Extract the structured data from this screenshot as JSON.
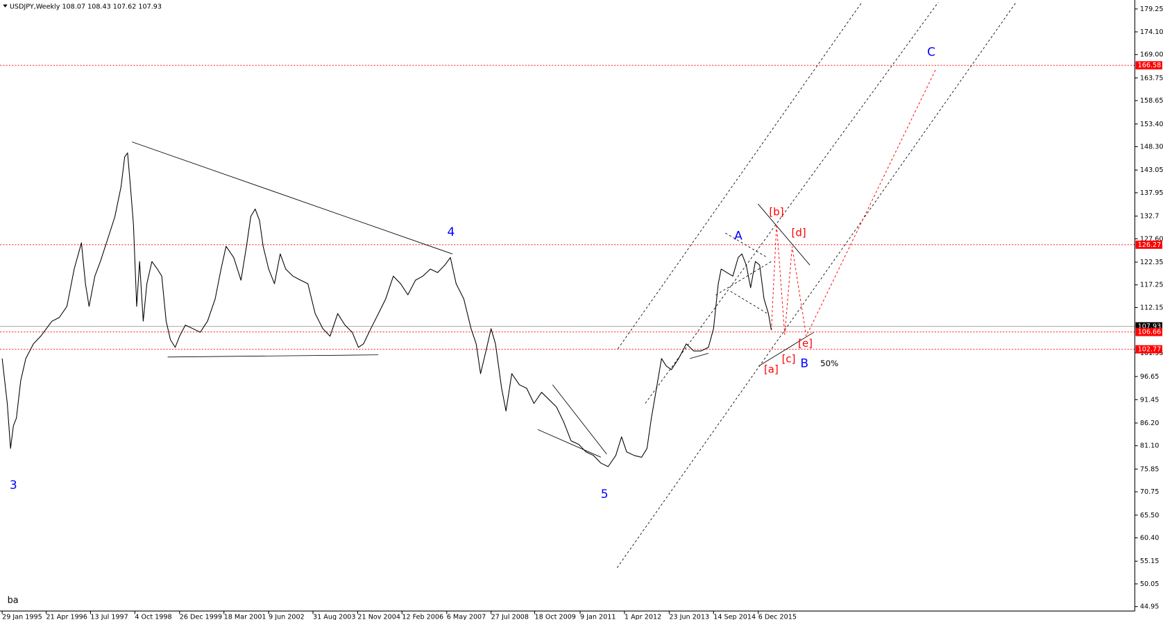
{
  "chart_data": {
    "type": "line",
    "title": "USDJPY,Weekly  108.07 108.43 107.62 107.93",
    "corner_text": "ba",
    "xlim": [
      1995.02,
      2026.24
    ],
    "ylim": [
      43.95,
      181.26
    ],
    "xticks": [
      {
        "value": 1995.08,
        "label": "29 Jan 1995"
      },
      {
        "value": 1996.29,
        "label": "21 Apr 1996"
      },
      {
        "value": 1997.51,
        "label": "13 Jul 1997"
      },
      {
        "value": 1998.73,
        "label": "4 Oct 1998"
      },
      {
        "value": 1999.96,
        "label": "26 Dec 1999"
      },
      {
        "value": 2001.18,
        "label": "18 Mar 2001"
      },
      {
        "value": 2002.41,
        "label": "9 Jun 2002"
      },
      {
        "value": 2003.63,
        "label": "31 Aug 2003"
      },
      {
        "value": 2004.86,
        "label": "21 Nov 2004"
      },
      {
        "value": 2006.08,
        "label": "12 Feb 2006"
      },
      {
        "value": 2007.31,
        "label": "6 May 2007"
      },
      {
        "value": 2008.53,
        "label": "27 Jul 2008"
      },
      {
        "value": 2009.73,
        "label": "18 Oct 2009"
      },
      {
        "value": 2010.98,
        "label": "9 Jan 2011"
      },
      {
        "value": 2012.2,
        "label": "1 Apr 2012"
      },
      {
        "value": 2013.43,
        "label": "23 Jun 2013"
      },
      {
        "value": 2014.65,
        "label": "14 Sep 2014"
      },
      {
        "value": 2015.88,
        "label": "6 Dec 2015"
      }
    ],
    "yticks": [
      179.25,
      {
        "value": 174.1,
        "label": "174.10"
      },
      {
        "value": 169,
        "label": "169.00"
      },
      163.75,
      158.65,
      {
        "value": 153.4,
        "label": "153.40"
      },
      {
        "value": 148.3,
        "label": "148.30"
      },
      143.05,
      137.95,
      132.7,
      {
        "value": 127.6,
        "label": "127.60"
      },
      122.35,
      117.25,
      112.15,
      101.95,
      96.65,
      91.45,
      {
        "value": 86.2,
        "label": "86.20"
      },
      {
        "value": 81.1,
        "label": "81.10"
      },
      75.85,
      70.75,
      {
        "value": 65.5,
        "label": "65.50"
      },
      {
        "value": 60.4,
        "label": "60.40"
      },
      55.15,
      50.05,
      44.95
    ],
    "levels": [
      {
        "value": 166.58,
        "color": "#ff0000"
      },
      {
        "value": 126.27,
        "color": "#ff0000"
      },
      {
        "value": 107.93,
        "color": "#000000"
      },
      {
        "value": 106.66,
        "color": "#ff0000"
      },
      {
        "value": 102.77,
        "color": "#ff0000"
      }
    ],
    "annotations": [
      "3",
      "4",
      "5",
      "A",
      "B",
      "C",
      "[a]",
      "[b]",
      "[c]",
      "[d]",
      "[e]",
      "50%"
    ],
    "series": [
      {
        "name": "USDJPY",
        "color": "#000000",
        "x": [
          1995.08,
          1995.22,
          1995.31,
          1995.39,
          1995.47,
          1995.59,
          1995.73,
          1995.94,
          1996.14,
          1996.45,
          1996.65,
          1996.86,
          1997.06,
          1997.26,
          1997.37,
          1997.47,
          1997.63,
          1997.78,
          1997.98,
          1998.18,
          1998.35,
          1998.45,
          1998.53,
          1998.61,
          1998.69,
          1998.78,
          1998.86,
          1998.96,
          1999.06,
          1999.2,
          1999.35,
          1999.47,
          1999.59,
          1999.71,
          1999.84,
          1999.96,
          2000.12,
          2000.33,
          2000.53,
          2000.73,
          2000.94,
          2001.1,
          2001.24,
          2001.45,
          2001.65,
          2001.8,
          2001.92,
          2002.04,
          2002.16,
          2002.26,
          2002.41,
          2002.57,
          2002.73,
          2002.88,
          2003.08,
          2003.29,
          2003.49,
          2003.69,
          2003.9,
          2004.1,
          2004.31,
          2004.51,
          2004.71,
          2004.88,
          2005.02,
          2005.22,
          2005.43,
          2005.63,
          2005.84,
          2006.04,
          2006.24,
          2006.45,
          2006.65,
          2006.86,
          2007.06,
          2007.26,
          2007.41,
          2007.57,
          2007.78,
          2007.98,
          2008.12,
          2008.24,
          2008.39,
          2008.53,
          2008.65,
          2008.82,
          2008.94,
          2009.1,
          2009.31,
          2009.51,
          2009.71,
          2009.92,
          2010.12,
          2010.33,
          2010.53,
          2010.73,
          2010.94,
          2011.14,
          2011.35,
          2011.55,
          2011.75,
          2011.96,
          2012.12,
          2012.26,
          2012.47,
          2012.67,
          2012.82,
          2012.94,
          2013.08,
          2013.22,
          2013.35,
          2013.49,
          2013.69,
          2013.9,
          2014.1,
          2014.31,
          2014.51,
          2014.65,
          2014.78,
          2014.86,
          2015.02,
          2015.18,
          2015.33,
          2015.43,
          2015.55,
          2015.67,
          2015.8,
          2015.92,
          2016.04,
          2016.16,
          2016.24
        ],
        "values": [
          100.7,
          90.6,
          80.5,
          85.6,
          87.3,
          95.7,
          100.7,
          104.0,
          105.7,
          109.1,
          109.9,
          112.4,
          120.8,
          126.7,
          117.5,
          112.4,
          119.2,
          122.5,
          127.5,
          132.6,
          139.3,
          146.0,
          146.9,
          139.3,
          130.9,
          112.4,
          122.5,
          109.1,
          117.5,
          122.5,
          120.8,
          119.2,
          109.1,
          104.9,
          103.2,
          105.7,
          108.2,
          107.4,
          106.6,
          109.1,
          114.1,
          120.8,
          125.9,
          123.4,
          118.3,
          125.9,
          132.6,
          134.3,
          131.7,
          125.9,
          120.8,
          117.5,
          124.2,
          120.8,
          119.2,
          118.3,
          117.5,
          110.8,
          107.4,
          105.7,
          110.8,
          108.2,
          106.6,
          103.2,
          104.0,
          107.4,
          110.8,
          114.1,
          119.2,
          117.5,
          115.0,
          118.3,
          119.2,
          120.8,
          120.0,
          121.7,
          123.4,
          117.5,
          114.1,
          107.4,
          104.0,
          97.3,
          102.4,
          107.4,
          104.0,
          94.0,
          88.9,
          97.3,
          94.8,
          94.0,
          90.6,
          93.1,
          91.5,
          89.8,
          86.4,
          82.2,
          81.4,
          79.7,
          78.9,
          77.2,
          76.4,
          78.9,
          83.1,
          79.7,
          78.9,
          78.5,
          80.5,
          87.3,
          94.0,
          100.7,
          99.0,
          98.2,
          100.7,
          104.0,
          102.4,
          102.4,
          103.2,
          107.4,
          117.5,
          120.8,
          120.0,
          119.2,
          123.4,
          124.2,
          121.7,
          116.6,
          122.5,
          121.7,
          114.1,
          110.8,
          107.1
        ]
      }
    ]
  }
}
